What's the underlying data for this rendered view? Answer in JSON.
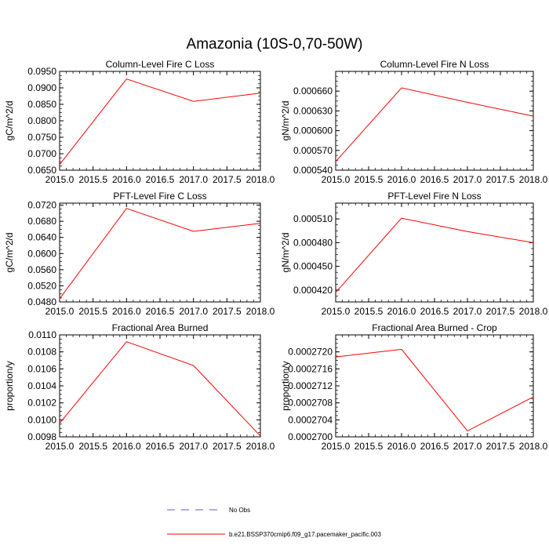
{
  "figure": {
    "title": "Amazonia (10S-0,70-50W)",
    "legend": {
      "entries": [
        {
          "label": "No Obs",
          "style": "dashed",
          "color": "#6a5acd"
        },
        {
          "label": "b.e21.BSSP370cmip6.f09_g17.pacemaker_pacific.003",
          "style": "solid",
          "color": "#ff0000"
        }
      ]
    }
  },
  "chart_data": [
    {
      "type": "line",
      "title": "Column-Level Fire C Loss",
      "ylabel": "gC/m^2/d",
      "xlim": [
        2015.0,
        2018.0
      ],
      "ylim": [
        0.065,
        0.095
      ],
      "xticks": [
        "2015.0",
        "2015.5",
        "2016.0",
        "2016.5",
        "2017.0",
        "2017.5",
        "2018.0"
      ],
      "yticks": [
        "0.0650",
        "0.0700",
        "0.0750",
        "0.0800",
        "0.0850",
        "0.0900",
        "0.0950"
      ],
      "series": [
        {
          "x": [
            2015,
            2016,
            2017,
            2018
          ],
          "values": [
            0.0667,
            0.0927,
            0.0859,
            0.0884
          ],
          "color": "#ff0000"
        }
      ]
    },
    {
      "type": "line",
      "title": "Column-Level Fire N Loss",
      "ylabel": "gN/m^2/d",
      "xlim": [
        2015.0,
        2018.0
      ],
      "ylim": [
        0.00054,
        0.00069
      ],
      "xticks": [
        "2015.0",
        "2015.5",
        "2016.0",
        "2016.5",
        "2017.0",
        "2017.5",
        "2018.0"
      ],
      "yticks": [
        "0.000540",
        "0.000570",
        "0.000600",
        "0.000630",
        "0.000660"
      ],
      "series": [
        {
          "x": [
            2015,
            2016,
            2017,
            2018
          ],
          "values": [
            0.000553,
            0.000665,
            0.000643,
            0.000622
          ],
          "color": "#ff0000"
        }
      ]
    },
    {
      "type": "line",
      "title": "PFT-Level Fire C Loss",
      "ylabel": "gC/m^2/d",
      "xlim": [
        2015.0,
        2018.0
      ],
      "ylim": [
        0.048,
        0.0725
      ],
      "xticks": [
        "2015.0",
        "2015.5",
        "2016.0",
        "2016.5",
        "2017.0",
        "2017.5",
        "2018.0"
      ],
      "yticks": [
        "0.0480",
        "0.0520",
        "0.0560",
        "0.0600",
        "0.0640",
        "0.0680",
        "0.0720"
      ],
      "series": [
        {
          "x": [
            2015,
            2016,
            2017,
            2018
          ],
          "values": [
            0.0488,
            0.0712,
            0.0655,
            0.0675
          ],
          "color": "#ff0000"
        }
      ]
    },
    {
      "type": "line",
      "title": "PFT-Level Fire N Loss",
      "ylabel": "gN/m^2/d",
      "xlim": [
        2015.0,
        2018.0
      ],
      "ylim": [
        0.000405,
        0.00053
      ],
      "xticks": [
        "2015.0",
        "2015.5",
        "2016.0",
        "2016.5",
        "2017.0",
        "2017.5",
        "2018.0"
      ],
      "yticks": [
        "0.000420",
        "0.000450",
        "0.000480",
        "0.000510"
      ],
      "series": [
        {
          "x": [
            2015,
            2016,
            2017,
            2018
          ],
          "values": [
            0.000417,
            0.000511,
            0.000494,
            0.00048
          ],
          "color": "#ff0000"
        }
      ]
    },
    {
      "type": "line",
      "title": "Fractional Area Burned",
      "ylabel": "proportion/y",
      "xlim": [
        2015.0,
        2018.0
      ],
      "ylim": [
        0.0098,
        0.011
      ],
      "xticks": [
        "2015.0",
        "2015.5",
        "2016.0",
        "2016.5",
        "2017.0",
        "2017.5",
        "2018.0"
      ],
      "yticks": [
        "0.0098",
        "0.0100",
        "0.0102",
        "0.0104",
        "0.0106",
        "0.0108",
        "0.0110"
      ],
      "series": [
        {
          "x": [
            2015,
            2016,
            2017,
            2018
          ],
          "values": [
            0.00996,
            0.01092,
            0.01064,
            0.00981
          ],
          "color": "#ff0000"
        }
      ]
    },
    {
      "type": "line",
      "title": "Fractional Area Burned - Crop",
      "ylabel": "proportion/y",
      "xlim": [
        2015.0,
        2018.0
      ],
      "ylim": [
        0.00027,
        0.0002724
      ],
      "xticks": [
        "2015.0",
        "2015.5",
        "2016.0",
        "2016.5",
        "2017.0",
        "2017.5",
        "2018.0"
      ],
      "yticks": [
        "0.0002700",
        "0.0002704",
        "0.0002708",
        "0.0002712",
        "0.0002716",
        "0.0002720"
      ],
      "series": [
        {
          "x": [
            2015,
            2016,
            2017,
            2018
          ],
          "values": [
            0.00027188,
            0.00027206,
            0.00027014,
            0.00027094
          ],
          "color": "#ff0000"
        }
      ]
    }
  ]
}
